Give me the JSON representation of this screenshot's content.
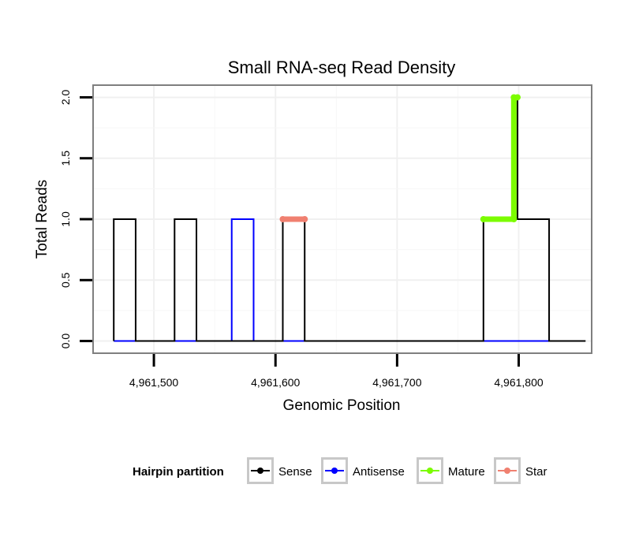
{
  "chart_data": {
    "type": "line",
    "title": "Small RNA-seq Read Density",
    "xlabel": "Genomic Position",
    "ylabel": "Total Reads",
    "xlim": [
      4961450,
      4961860
    ],
    "ylim": [
      -0.1,
      2.1
    ],
    "x_ticks": [
      4961500,
      4961600,
      4961700,
      4961800
    ],
    "x_tick_labels": [
      "4,961,500",
      "4,961,600",
      "4,961,700",
      "4,961,800"
    ],
    "y_ticks": [
      0,
      0.5,
      1,
      1.5,
      2
    ],
    "y_tick_labels": [
      "0.0",
      "0.5",
      "1.0",
      "1.5",
      "2.0"
    ],
    "grid": true,
    "legend": {
      "title": "Hairpin partition",
      "position": "bottom",
      "entries": [
        {
          "name": "Sense",
          "color": "#000000"
        },
        {
          "name": "Antisense",
          "color": "#0000ff"
        },
        {
          "name": "Mature",
          "color": "#7cfc00"
        },
        {
          "name": "Star",
          "color": "#f08070"
        }
      ]
    },
    "series": [
      {
        "name": "Sense",
        "color": "#000000",
        "x": [
          4961467,
          4961467,
          4961485,
          4961485,
          4961517,
          4961517,
          4961535,
          4961535,
          4961606,
          4961606,
          4961624,
          4961624,
          4961771,
          4961771,
          4961796,
          4961796,
          4961799,
          4961799,
          4961825,
          4961825,
          4961855
        ],
        "y": [
          0,
          1,
          1,
          0,
          0,
          1,
          1,
          0,
          0,
          1,
          1,
          0,
          0,
          1,
          1,
          2,
          2,
          1,
          1,
          0,
          0
        ]
      },
      {
        "name": "Antisense",
        "color": "#0000ff",
        "x": [
          4961467,
          4961564,
          4961564,
          4961582,
          4961582,
          4961625,
          4961771,
          4961825
        ],
        "y": [
          0,
          0,
          1,
          1,
          0,
          0,
          0,
          0
        ]
      },
      {
        "name": "Mature",
        "color": "#7cfc00",
        "x": [
          4961771,
          4961796,
          4961796,
          4961799
        ],
        "y": [
          1,
          1,
          2,
          2
        ]
      },
      {
        "name": "Star",
        "color": "#f08070",
        "x": [
          4961606,
          4961624
        ],
        "y": [
          1,
          1
        ]
      }
    ]
  }
}
